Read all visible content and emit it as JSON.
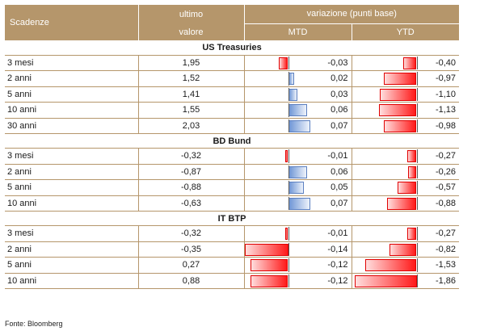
{
  "header": {
    "scadenze": "Scadenze",
    "ultimo": "ultimo",
    "valore": "valore",
    "variazione": "variazione (punti base)",
    "mtd": "MTD",
    "ytd": "YTD"
  },
  "sections": [
    {
      "title": "US Treasuries",
      "rows": [
        {
          "tenor": "3 mesi",
          "value": "1,95",
          "mtd": "-0,03",
          "ytd": "-0,40",
          "mtd_num": -0.03,
          "ytd_num": -0.4
        },
        {
          "tenor": "2 anni",
          "value": "1,52",
          "mtd": "0,02",
          "ytd": "-0,97",
          "mtd_num": 0.02,
          "ytd_num": -0.97
        },
        {
          "tenor": "5 anni",
          "value": "1,41",
          "mtd": "0,03",
          "ytd": "-1,10",
          "mtd_num": 0.03,
          "ytd_num": -1.1
        },
        {
          "tenor": "10 anni",
          "value": "1,55",
          "mtd": "0,06",
          "ytd": "-1,13",
          "mtd_num": 0.06,
          "ytd_num": -1.13
        },
        {
          "tenor": "30 anni",
          "value": "2,03",
          "mtd": "0,07",
          "ytd": "-0,98",
          "mtd_num": 0.07,
          "ytd_num": -0.98
        }
      ]
    },
    {
      "title": "BD Bund",
      "rows": [
        {
          "tenor": "3 mesi",
          "value": "-0,32",
          "mtd": "-0,01",
          "ytd": "-0,27",
          "mtd_num": -0.01,
          "ytd_num": -0.27
        },
        {
          "tenor": "2 anni",
          "value": "-0,87",
          "mtd": "0,06",
          "ytd": "-0,26",
          "mtd_num": 0.06,
          "ytd_num": -0.26
        },
        {
          "tenor": "5 anni",
          "value": "-0,88",
          "mtd": "0,05",
          "ytd": "-0,57",
          "mtd_num": 0.05,
          "ytd_num": -0.57
        },
        {
          "tenor": "10 anni",
          "value": "-0,63",
          "mtd": "0,07",
          "ytd": "-0,88",
          "mtd_num": 0.07,
          "ytd_num": -0.88
        }
      ]
    },
    {
      "title": "IT BTP",
      "rows": [
        {
          "tenor": "3 mesi",
          "value": "-0,32",
          "mtd": "-0,01",
          "ytd": "-0,27",
          "mtd_num": -0.01,
          "ytd_num": -0.27
        },
        {
          "tenor": "2 anni",
          "value": "-0,35",
          "mtd": "-0,14",
          "ytd": "-0,82",
          "mtd_num": -0.14,
          "ytd_num": -0.82
        },
        {
          "tenor": "5 anni",
          "value": "0,27",
          "mtd": "-0,12",
          "ytd": "-1,53",
          "mtd_num": -0.12,
          "ytd_num": -1.53
        },
        {
          "tenor": "10 anni",
          "value": "0,88",
          "mtd": "-0,12",
          "ytd": "-1,86",
          "mtd_num": -0.12,
          "ytd_num": -1.86
        }
      ]
    }
  ],
  "source": "Fonte: Bloomberg",
  "colors": {
    "header_bg": "#b5966b",
    "negative_bar": "#ff1a1a",
    "positive_bar": "#6f96d6"
  }
}
